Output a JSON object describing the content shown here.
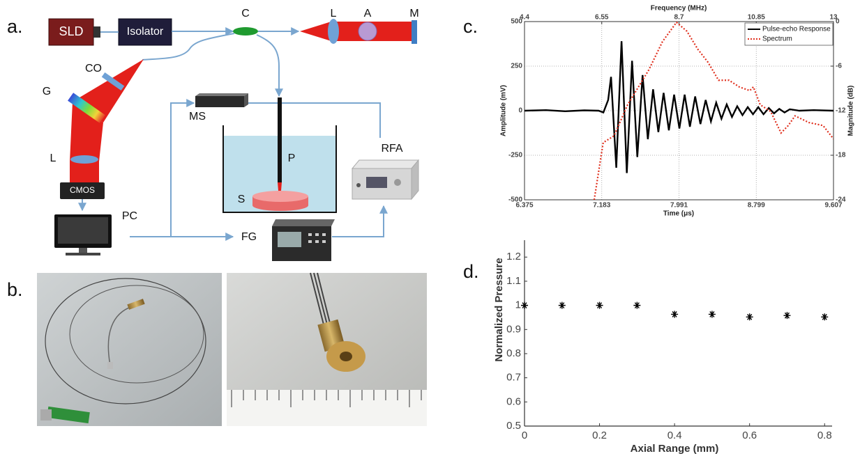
{
  "panels": [
    "a.",
    "b.",
    "c.",
    "d."
  ],
  "diagram": {
    "sld": "SLD",
    "isolator": "Isolator",
    "c": "C",
    "l1": "L",
    "a": "A",
    "m": "M",
    "co": "CO",
    "g": "G",
    "l2": "L",
    "cmos": "CMOS",
    "pc": "PC",
    "ms": "MS",
    "p": "P",
    "s": "S",
    "rfa": "RFA",
    "fg": "FG"
  },
  "chart_data": [
    {
      "type": "line",
      "xlabel": "Time (μs)",
      "x2label": "Frequency (MHz)",
      "ylabel": "Amplitude (mV)",
      "y2label": "Magnitude (dB)",
      "xlim": [
        6.375,
        9.607
      ],
      "xticks": [
        6.375,
        7.183,
        7.991,
        8.799,
        9.607
      ],
      "x2lim": [
        4.4,
        13
      ],
      "x2ticks": [
        4.4,
        6.55,
        8.7,
        10.85,
        13
      ],
      "ylim": [
        -500,
        500
      ],
      "yticks": [
        -500,
        -250,
        0,
        250,
        500
      ],
      "y2lim": [
        -24,
        0
      ],
      "y2ticks": [
        -24,
        -18,
        -12,
        -6,
        0
      ],
      "grid": true,
      "legend": "upper right",
      "series": [
        {
          "name": "Pulse-echo Response",
          "color": "#000000",
          "x": [
            6.375,
            6.6,
            6.8,
            7.0,
            7.15,
            7.2,
            7.25,
            7.28,
            7.335,
            7.39,
            7.445,
            7.5,
            7.555,
            7.61,
            7.665,
            7.72,
            7.775,
            7.83,
            7.885,
            7.94,
            7.995,
            8.05,
            8.105,
            8.16,
            8.215,
            8.27,
            8.325,
            8.38,
            8.435,
            8.49,
            8.545,
            8.6,
            8.655,
            8.71,
            8.765,
            8.82,
            8.875,
            8.93,
            8.985,
            9.04,
            9.095,
            9.15,
            9.25,
            9.4,
            9.607
          ],
          "values": [
            0,
            3,
            -3,
            2,
            0,
            -10,
            60,
            190,
            -320,
            390,
            -350,
            280,
            -260,
            200,
            -160,
            120,
            -120,
            100,
            -110,
            90,
            -100,
            90,
            -90,
            80,
            -75,
            60,
            -60,
            45,
            -45,
            35,
            -35,
            25,
            -25,
            20,
            -20,
            20,
            -20,
            15,
            -15,
            10,
            -10,
            8,
            0,
            3,
            0
          ]
        },
        {
          "name": "Spectrum",
          "color": "#e0301e",
          "line_style": "dotted",
          "axis": "y2",
          "x_axis": "x2",
          "x": [
            6.34,
            6.59,
            6.89,
            7.27,
            7.86,
            8.24,
            8.63,
            8.92,
            9.22,
            9.51,
            9.8,
            10.09,
            10.38,
            10.67,
            10.77,
            10.96,
            11.25,
            11.54,
            11.74,
            11.93,
            12.32,
            12.71,
            13
          ],
          "values": [
            -24,
            -16.3,
            -15.4,
            -11.2,
            -6.5,
            -2.7,
            -0.1,
            -1.3,
            -3.7,
            -5.5,
            -7.9,
            -7.9,
            -8.8,
            -9.3,
            -8.8,
            -11.2,
            -12.1,
            -15,
            -14,
            -12.7,
            -13.6,
            -14,
            -15.8
          ]
        }
      ]
    },
    {
      "type": "scatter",
      "xlabel": "Axial Range (mm)",
      "ylabel": "Normalized Pressure",
      "color": "#000000",
      "xlim": [
        0,
        0.82
      ],
      "xticks": [
        0,
        0.2,
        0.4,
        0.6,
        0.8
      ],
      "ylim": [
        0.5,
        1.27
      ],
      "yticks": [
        0.5,
        0.6,
        0.7,
        0.8,
        0.9,
        1,
        1.1,
        1.2
      ],
      "x": [
        0,
        0.1,
        0.2,
        0.3,
        0.4,
        0.5,
        0.6,
        0.7,
        0.8
      ],
      "values": [
        1,
        1,
        1,
        1,
        0.963,
        0.963,
        0.952,
        0.958,
        0.952
      ]
    }
  ]
}
